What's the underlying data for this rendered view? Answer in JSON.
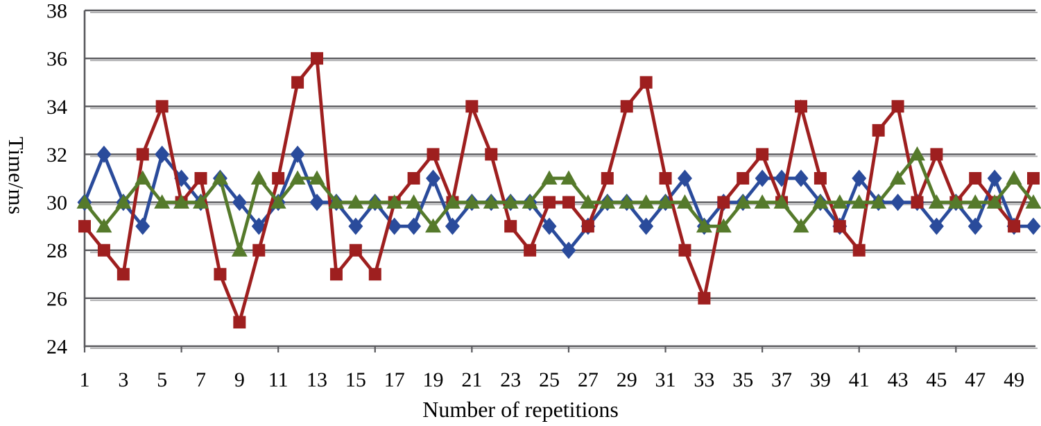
{
  "chart_data": {
    "type": "line",
    "title": "",
    "xlabel": "Number of repetitions",
    "ylabel": "Time/ms",
    "x_count": 50,
    "x_start": 1,
    "x_label_interval": 2,
    "x_tick_mark_interval": 5,
    "ylim": [
      24,
      38
    ],
    "y_ticks": [
      24,
      26,
      28,
      30,
      32,
      34,
      36,
      38
    ],
    "grid": "horizontal",
    "legend_position": "none",
    "series": [
      {
        "name": "blue-diamond-series",
        "marker": "diamond",
        "color": "#2A4B9B",
        "values": [
          30,
          32,
          30,
          29,
          32,
          31,
          30,
          31,
          30,
          29,
          30,
          32,
          30,
          30,
          29,
          30,
          29,
          29,
          31,
          29,
          30,
          30,
          30,
          30,
          29,
          28,
          29,
          30,
          30,
          29,
          30,
          31,
          29,
          30,
          30,
          31,
          31,
          31,
          30,
          29,
          31,
          30,
          30,
          30,
          29,
          30,
          29,
          31,
          29,
          29
        ]
      },
      {
        "name": "red-square-series",
        "marker": "square",
        "color": "#9E1F1F",
        "values": [
          29,
          28,
          27,
          32,
          34,
          30,
          31,
          27,
          25,
          28,
          31,
          35,
          36,
          27,
          28,
          27,
          30,
          31,
          32,
          30,
          34,
          32,
          29,
          28,
          30,
          30,
          29,
          31,
          34,
          35,
          31,
          28,
          26,
          30,
          31,
          32,
          30,
          34,
          31,
          29,
          28,
          33,
          34,
          30,
          32,
          30,
          31,
          30,
          29,
          31
        ]
      },
      {
        "name": "green-triangle-series",
        "marker": "triangle",
        "color": "#557A2B",
        "values": [
          30,
          29,
          30,
          31,
          30,
          30,
          30,
          31,
          28,
          31,
          30,
          31,
          31,
          30,
          30,
          30,
          30,
          30,
          29,
          30,
          30,
          30,
          30,
          30,
          31,
          31,
          30,
          30,
          30,
          30,
          30,
          30,
          29,
          29,
          30,
          30,
          30,
          29,
          30,
          30,
          30,
          30,
          31,
          32,
          30,
          30,
          30,
          30,
          31,
          30
        ]
      }
    ],
    "colors": {
      "grid": "#58585C",
      "grid_shadow": "#B2B2B4",
      "axis": "#58585C",
      "text": "#000000",
      "background": "#FFFFFF"
    }
  }
}
